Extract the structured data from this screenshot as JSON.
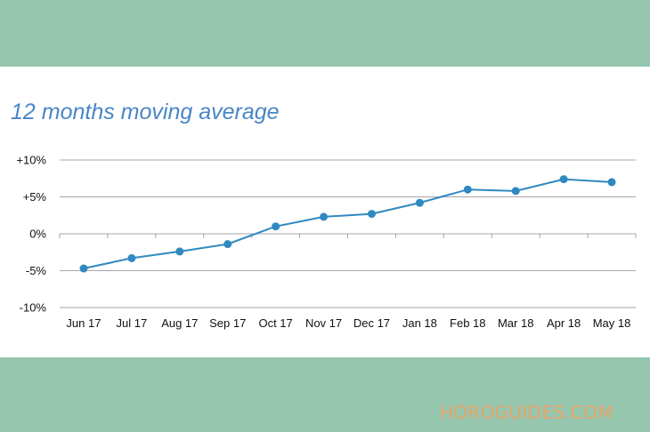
{
  "colors": {
    "band": "#96c6ae",
    "panel": "#ffffff",
    "title": "#4a86c6",
    "series": "#2f89c1",
    "grid": "#a6a6a6",
    "watermark": "#e7a46a"
  },
  "watermark": "HOROGUIDES.COM",
  "chart_data": {
    "type": "line",
    "title": "12 months moving average",
    "xlabel": "",
    "ylabel": "",
    "categories": [
      "Jun 17",
      "Jul 17",
      "Aug 17",
      "Sep 17",
      "Oct 17",
      "Nov 17",
      "Dec 17",
      "Jan 18",
      "Feb 18",
      "Mar 18",
      "Apr 18",
      "May 18"
    ],
    "series": [
      {
        "values": [
          -4.7,
          -3.3,
          -2.4,
          -1.4,
          1.0,
          2.3,
          2.7,
          4.2,
          6.0,
          5.8,
          7.4,
          7.0
        ]
      }
    ],
    "ylim": [
      -10,
      10
    ],
    "yticks": [
      10,
      5,
      0,
      -5,
      -10
    ],
    "ytick_labels": [
      "+10%",
      "+5%",
      "0%",
      "-5%",
      "-10%"
    ],
    "grid": "horizontal",
    "legend": "none",
    "markers": true
  }
}
